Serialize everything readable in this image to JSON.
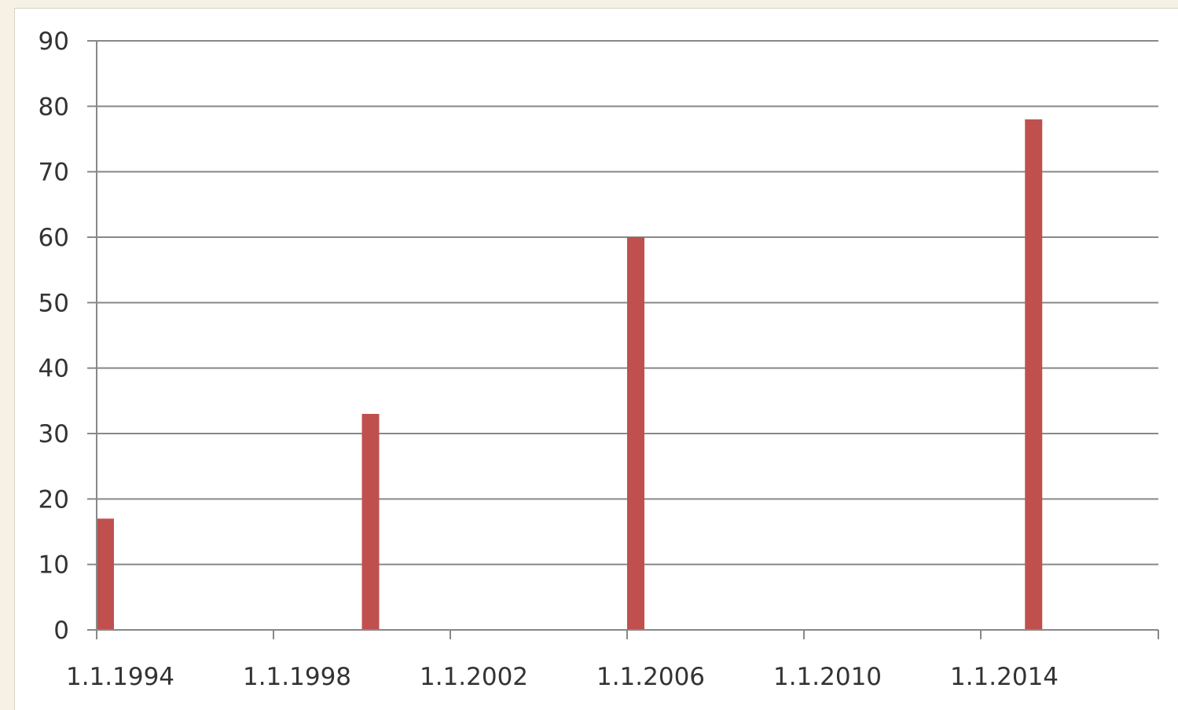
{
  "chart_data": {
    "type": "bar",
    "categories": [
      "1.1.1994",
      "1.1.2000",
      "1.1.2006",
      "1.1.2015"
    ],
    "values": [
      17,
      33,
      60,
      78
    ],
    "x_tick_labels": [
      "1.1.1994",
      "1.1.1998",
      "1.1.2002",
      "1.1.2006",
      "1.1.2010",
      "1.1.2014"
    ],
    "y_tick_labels": [
      "0",
      "10",
      "20",
      "30",
      "40",
      "50",
      "60",
      "70",
      "80",
      "90"
    ],
    "ylim": [
      0,
      90
    ],
    "x_range_years": [
      1994,
      2018
    ],
    "grid": true,
    "bar_color": "#c0504d",
    "gridline_color": "#888888"
  }
}
